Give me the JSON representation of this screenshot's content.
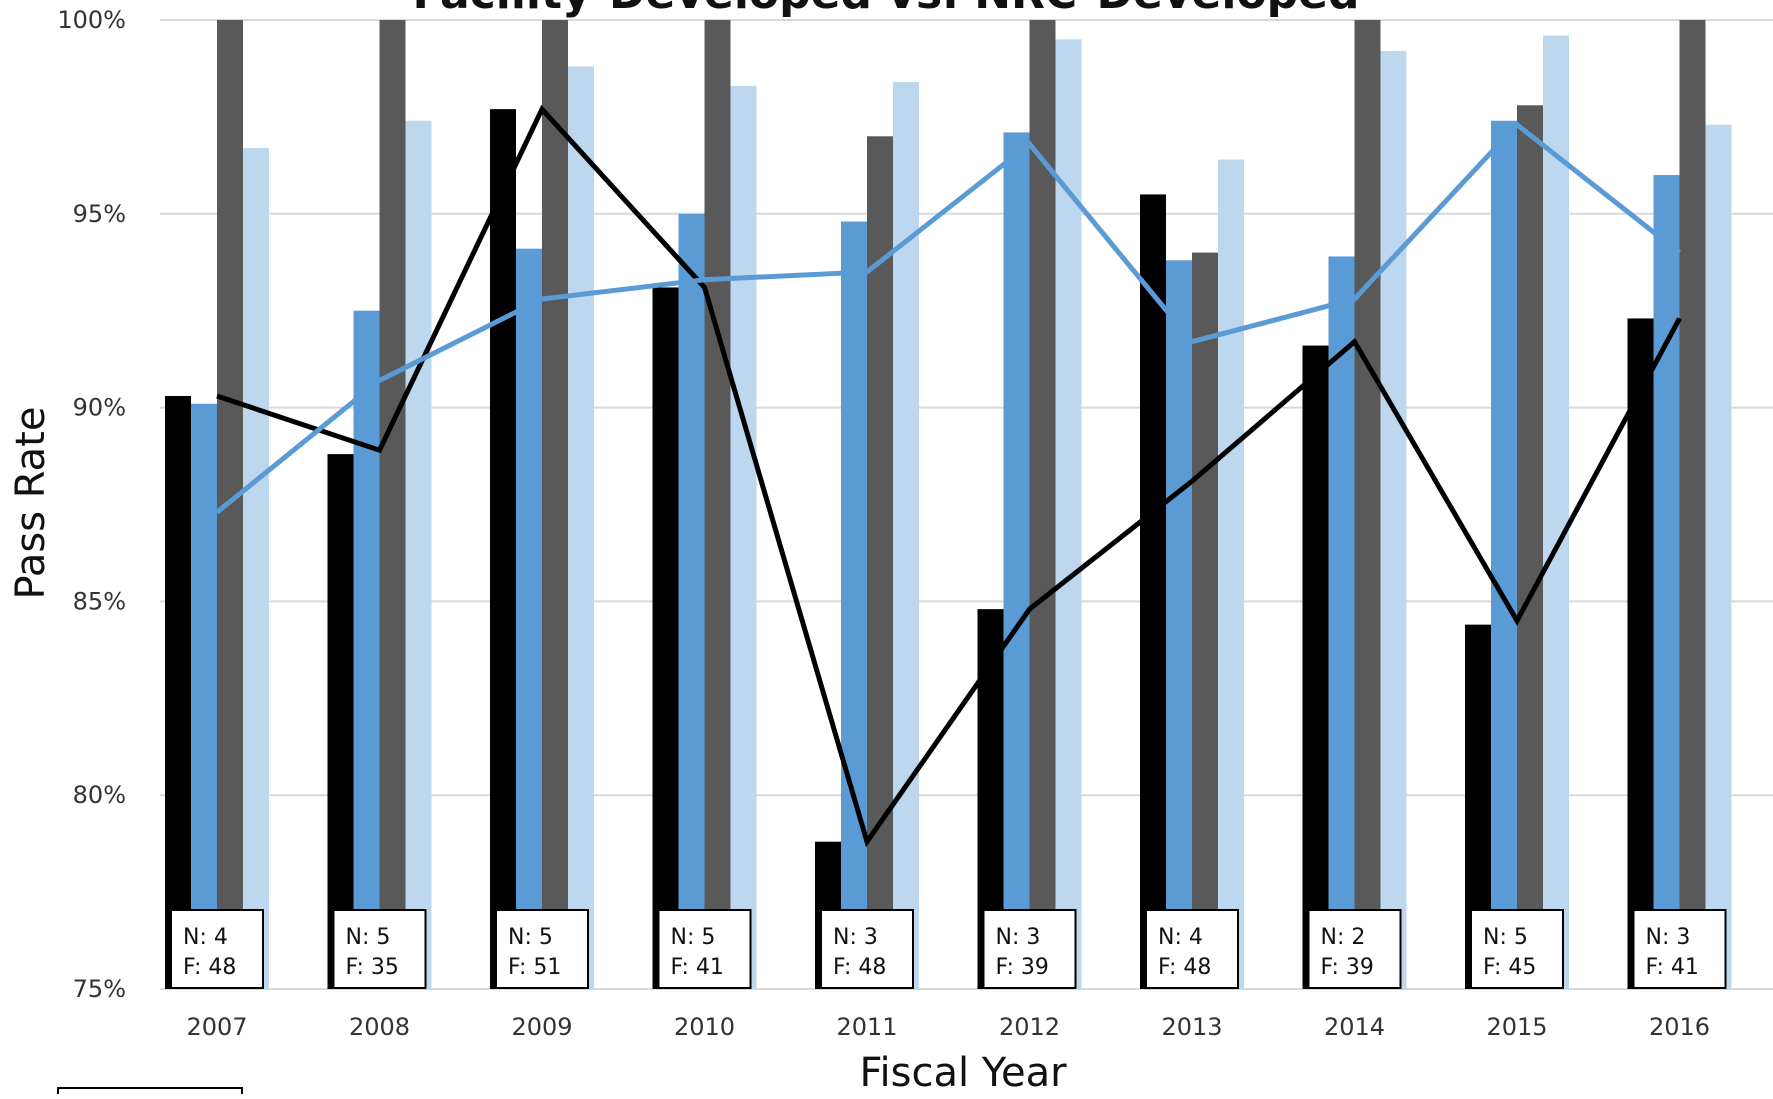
{
  "chart_data": {
    "type": "bar",
    "title": "Facility-Developed vs. NRC-Developed",
    "xlabel": "Fiscal Year",
    "ylabel": "Pass Rate",
    "ylim": [
      75,
      100
    ],
    "y_ticks": [
      "75%",
      "80%",
      "85%",
      "90%",
      "95%",
      "100%"
    ],
    "y_tick_values": [
      75,
      80,
      85,
      90,
      95,
      100
    ],
    "grid": true,
    "categories": [
      "2007",
      "2008",
      "2009",
      "2010",
      "2011",
      "2012",
      "2013",
      "2014",
      "2015",
      "2016"
    ],
    "colors": {
      "black": "#000000",
      "blue": "#5b9bd5",
      "gray": "#595959",
      "lightblue": "#bdd7ee",
      "grid": "#d9d9d9"
    },
    "bar_series": [
      {
        "color": "#000000",
        "values": [
          90.3,
          88.8,
          97.7,
          93.1,
          78.8,
          84.8,
          95.5,
          91.6,
          84.4,
          92.3
        ]
      },
      {
        "color": "#5b9bd5",
        "values": [
          90.1,
          92.5,
          94.1,
          95.0,
          94.8,
          97.1,
          93.8,
          93.9,
          97.4,
          96.0
        ]
      },
      {
        "color": "#595959",
        "values": [
          100,
          100,
          100,
          100,
          97.0,
          100,
          94.0,
          100,
          97.8,
          100
        ]
      },
      {
        "color": "#bdd7ee",
        "values": [
          96.7,
          97.4,
          98.8,
          98.3,
          98.4,
          99.5,
          96.4,
          99.2,
          99.6,
          97.3
        ]
      }
    ],
    "line_series": [
      {
        "color": "#000000",
        "values": [
          90.3,
          88.9,
          97.7,
          93.1,
          78.8,
          84.8,
          88.1,
          91.7,
          84.5,
          92.3
        ]
      },
      {
        "color": "#5b9bd5",
        "values": [
          87.3,
          90.7,
          92.8,
          93.3,
          93.5,
          96.8,
          91.7,
          92.8,
          97.3,
          94.0
        ]
      }
    ],
    "annotations": [
      {
        "n": "N: 4",
        "f": "F: 48"
      },
      {
        "n": "N: 5",
        "f": "F: 35"
      },
      {
        "n": "N: 5",
        "f": "F: 51"
      },
      {
        "n": "N: 5",
        "f": "F: 41"
      },
      {
        "n": "N: 3",
        "f": "F: 48"
      },
      {
        "n": "N: 3",
        "f": "F: 39"
      },
      {
        "n": "N: 4",
        "f": "F: 48"
      },
      {
        "n": "N: 2",
        "f": "F: 39"
      },
      {
        "n": "N: 5",
        "f": "F: 45"
      },
      {
        "n": "N: 3",
        "f": "F: 41"
      }
    ]
  }
}
